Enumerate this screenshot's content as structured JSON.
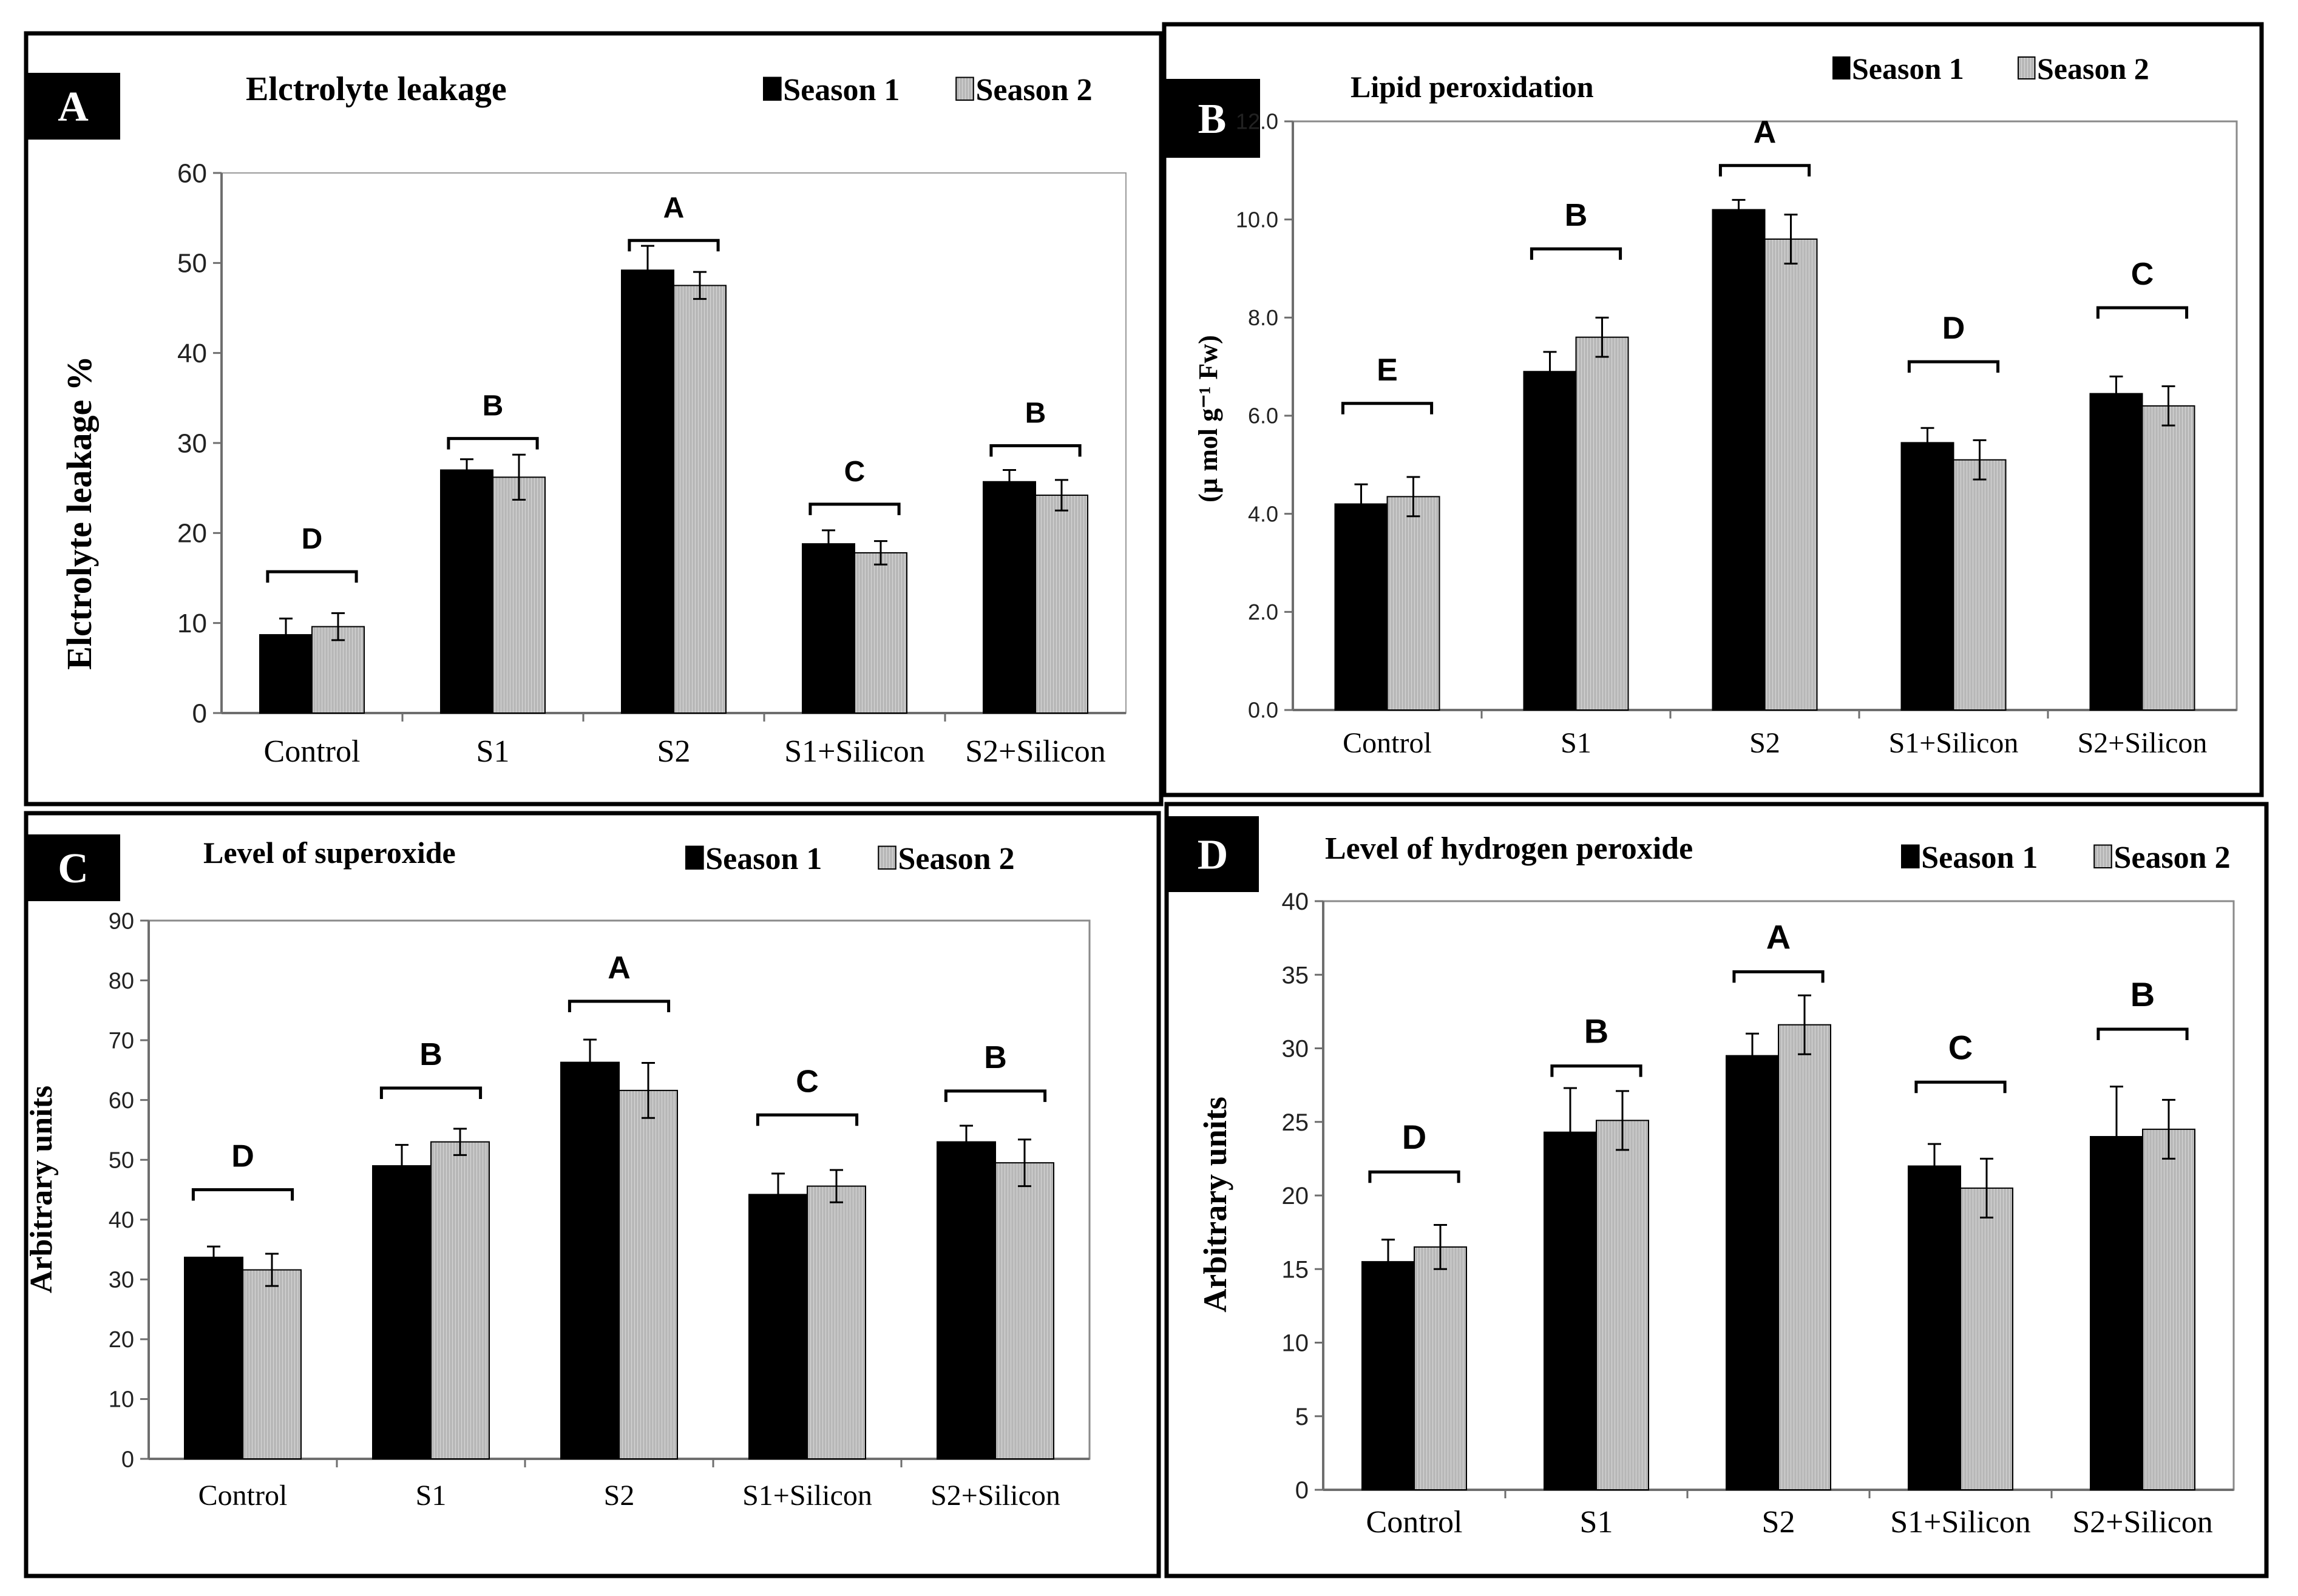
{
  "colors": {
    "season1": "#000000",
    "season2": "#b3b3b3",
    "hatch": "#d9d9d9"
  },
  "chart_data": [
    {
      "panel": "A",
      "type": "bar",
      "title": "Elctrolyte leakage",
      "ylabel": "Elctrolyte leakage %",
      "ylim": [
        0,
        60
      ],
      "yticks": [
        "0",
        "10",
        "20",
        "30",
        "40",
        "50",
        "60"
      ],
      "categories": [
        "Control",
        "S1",
        "S2",
        "S1+Silicon",
        "S2+Silicon"
      ],
      "series": [
        {
          "name": "Season 1",
          "values": [
            8.7,
            27.0,
            49.2,
            18.8,
            25.7
          ],
          "errors": [
            1.8,
            1.2,
            2.7,
            1.5,
            1.3
          ]
        },
        {
          "name": "Season 2",
          "values": [
            9.6,
            26.2,
            47.5,
            17.8,
            24.2
          ],
          "errors": [
            1.5,
            2.5,
            1.5,
            1.3,
            1.7
          ]
        }
      ],
      "letters": [
        "D",
        "B",
        "A",
        "C",
        "B"
      ],
      "letter_levels": [
        15.7,
        30.5,
        52.5,
        23.2,
        29.7
      ],
      "legend": "top-right",
      "grid": false
    },
    {
      "panel": "B",
      "type": "bar",
      "title": "Lipid peroxidation",
      "ylabel": "(µ mol g⁻¹ Fw)",
      "ylim": [
        0,
        12
      ],
      "yticks": [
        "0.0",
        "2.0",
        "4.0",
        "6.0",
        "8.0",
        "10.0",
        "12.0"
      ],
      "categories": [
        "Control",
        "S1",
        "S2",
        "S1+Silicon",
        "S2+Silicon"
      ],
      "series": [
        {
          "name": "Season 1",
          "values": [
            4.2,
            6.9,
            10.2,
            5.45,
            6.45
          ],
          "errors": [
            0.4,
            0.4,
            0.2,
            0.3,
            0.35
          ]
        },
        {
          "name": "Season 2",
          "values": [
            4.35,
            7.6,
            9.6,
            5.1,
            6.2
          ],
          "errors": [
            0.4,
            0.4,
            0.5,
            0.4,
            0.4
          ]
        }
      ],
      "letters": [
        "E",
        "B",
        "A",
        "D",
        "C"
      ],
      "letter_levels": [
        6.25,
        9.4,
        11.1,
        7.1,
        8.2
      ],
      "legend": "top-right",
      "grid": false
    },
    {
      "panel": "C",
      "type": "bar",
      "title": "Level of superoxide",
      "ylabel": "Arbitrary units",
      "ylim": [
        0,
        90
      ],
      "yticks": [
        "0",
        "10",
        "20",
        "30",
        "40",
        "50",
        "60",
        "70",
        "80",
        "90"
      ],
      "categories": [
        "Control",
        "S1",
        "S2",
        "S1+Silicon",
        "S2+Silicon"
      ],
      "series": [
        {
          "name": "Season 1",
          "values": [
            33.7,
            49.0,
            66.3,
            44.2,
            53.0
          ],
          "errors": [
            1.8,
            3.5,
            3.8,
            3.5,
            2.7
          ]
        },
        {
          "name": "Season 2",
          "values": [
            31.6,
            53.0,
            61.6,
            45.6,
            49.5
          ],
          "errors": [
            2.7,
            2.2,
            4.6,
            2.7,
            3.9
          ]
        }
      ],
      "letters": [
        "D",
        "B",
        "A",
        "C",
        "B"
      ],
      "letter_levels": [
        45.0,
        62.0,
        76.5,
        57.5,
        61.5
      ],
      "legend": "top-right",
      "grid": false
    },
    {
      "panel": "D",
      "type": "bar",
      "title": "Level of hydrogen peroxide",
      "ylabel": "Arbitrary units",
      "ylim": [
        0,
        40
      ],
      "yticks": [
        "0",
        "5",
        "10",
        "15",
        "20",
        "25",
        "30",
        "35",
        "40"
      ],
      "categories": [
        "Control",
        "S1",
        "S2",
        "S1+Silicon",
        "S2+Silicon"
      ],
      "series": [
        {
          "name": "Season 1",
          "values": [
            15.5,
            24.3,
            29.5,
            22.0,
            24.0
          ],
          "errors": [
            1.5,
            3.0,
            1.5,
            1.5,
            3.4
          ]
        },
        {
          "name": "Season 2",
          "values": [
            16.5,
            25.1,
            31.6,
            20.5,
            24.5
          ],
          "errors": [
            1.5,
            2.0,
            2.0,
            2.0,
            2.0
          ]
        }
      ],
      "letters": [
        "D",
        "B",
        "A",
        "C",
        "B"
      ],
      "letter_levels": [
        21.6,
        28.8,
        35.2,
        27.7,
        31.3
      ],
      "legend": "top-right",
      "grid": false
    }
  ]
}
